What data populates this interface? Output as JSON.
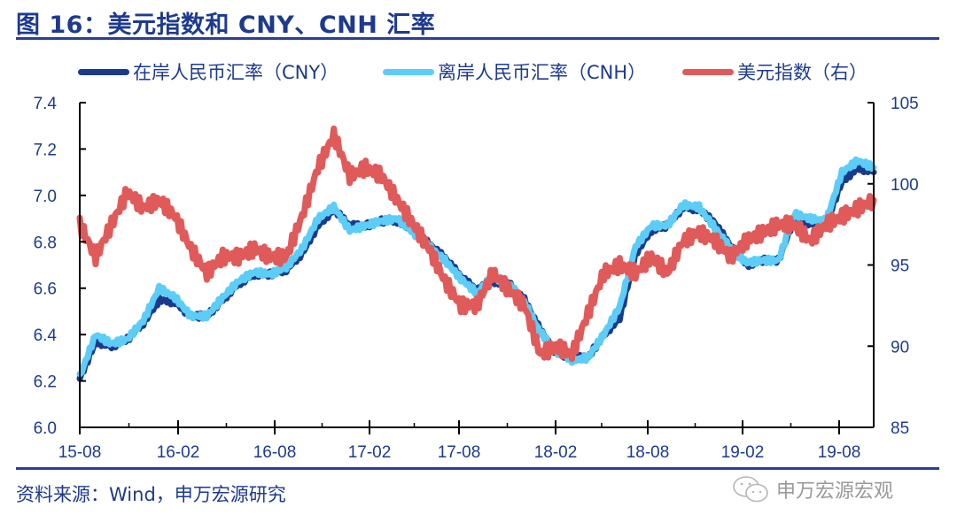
{
  "header": {
    "title": "图 16：美元指数和 CNY、CNH 汇率"
  },
  "legend": [
    {
      "label": "在岸人民币汇率（CNY）",
      "color": "#1a3a8c"
    },
    {
      "label": "离岸人民币汇率（CNH）",
      "color": "#5bcdf7"
    },
    {
      "label": "美元指数（右）",
      "color": "#e05a5a"
    }
  ],
  "footer": {
    "source": "资料来源：Wind，申万宏源研究",
    "watermark": "申万宏源宏观"
  },
  "colors": {
    "title": "#1d3a8f",
    "rule": "#2c3e96",
    "cny": "#1a3a8c",
    "cnh": "#5bcdf7",
    "dxy": "#e05a5a"
  },
  "chart_data": {
    "type": "line",
    "title": "图 16：美元指数和 CNY、CNH 汇率",
    "xlabel": "",
    "ylabel_left": "",
    "ylabel_right": "",
    "x_tick_labels": [
      "15-08",
      "16-02",
      "16-08",
      "17-02",
      "17-08",
      "18-02",
      "18-08",
      "19-02",
      "19-08"
    ],
    "y_left": {
      "range": [
        6.0,
        7.4
      ],
      "ticks": [
        "6.0",
        "6.2",
        "6.4",
        "6.6",
        "6.8",
        "7.0",
        "7.2",
        "7.4"
      ]
    },
    "y_right": {
      "range": [
        85,
        105
      ],
      "ticks": [
        "85",
        "90",
        "95",
        "100",
        "105"
      ]
    },
    "grid": false,
    "legend_position": "top",
    "x": [
      "2015-08",
      "2015-09",
      "2015-10",
      "2015-11",
      "2015-12",
      "2016-01",
      "2016-02",
      "2016-03",
      "2016-04",
      "2016-05",
      "2016-06",
      "2016-07",
      "2016-08",
      "2016-09",
      "2016-10",
      "2016-11",
      "2016-12",
      "2017-01",
      "2017-02",
      "2017-03",
      "2017-04",
      "2017-05",
      "2017-06",
      "2017-07",
      "2017-08",
      "2017-09",
      "2017-10",
      "2017-11",
      "2017-12",
      "2018-01",
      "2018-02",
      "2018-03",
      "2018-04",
      "2018-05",
      "2018-06",
      "2018-07",
      "2018-08",
      "2018-09",
      "2018-10",
      "2018-11",
      "2018-12",
      "2019-01",
      "2019-02",
      "2019-03",
      "2019-04",
      "2019-05",
      "2019-06",
      "2019-07",
      "2019-08",
      "2019-09",
      "2019-10"
    ],
    "series": [
      {
        "name": "在岸人民币汇率（CNY）",
        "axis": "left",
        "values": [
          6.21,
          6.37,
          6.35,
          6.38,
          6.45,
          6.55,
          6.54,
          6.48,
          6.48,
          6.55,
          6.62,
          6.66,
          6.66,
          6.68,
          6.75,
          6.87,
          6.94,
          6.87,
          6.87,
          6.89,
          6.89,
          6.85,
          6.79,
          6.73,
          6.65,
          6.59,
          6.63,
          6.62,
          6.55,
          6.42,
          6.32,
          6.3,
          6.3,
          6.4,
          6.47,
          6.75,
          6.85,
          6.87,
          6.95,
          6.94,
          6.88,
          6.78,
          6.7,
          6.72,
          6.72,
          6.9,
          6.88,
          6.88,
          7.06,
          7.12,
          7.1
        ]
      },
      {
        "name": "离岸人民币汇率（CNH）",
        "axis": "left",
        "values": [
          6.22,
          6.4,
          6.36,
          6.38,
          6.46,
          6.6,
          6.56,
          6.48,
          6.48,
          6.56,
          6.63,
          6.67,
          6.66,
          6.69,
          6.77,
          6.9,
          6.95,
          6.85,
          6.87,
          6.89,
          6.9,
          6.84,
          6.78,
          6.72,
          6.64,
          6.58,
          6.65,
          6.62,
          6.54,
          6.41,
          6.33,
          6.29,
          6.3,
          6.4,
          6.52,
          6.78,
          6.87,
          6.87,
          6.96,
          6.95,
          6.86,
          6.77,
          6.71,
          6.72,
          6.72,
          6.92,
          6.9,
          6.89,
          7.1,
          7.15,
          7.12
        ]
      },
      {
        "name": "美元指数（右）",
        "axis": "right",
        "values": [
          97.5,
          95.5,
          97.5,
          99.5,
          98.5,
          99.0,
          98.0,
          96.0,
          94.5,
          95.5,
          95.5,
          96.0,
          95.5,
          95.5,
          98.0,
          101.0,
          103.0,
          100.5,
          101.0,
          100.5,
          99.0,
          97.5,
          96.0,
          94.0,
          92.5,
          92.5,
          94.5,
          93.5,
          92.5,
          89.5,
          90.0,
          89.5,
          92.0,
          94.5,
          95.0,
          94.5,
          95.5,
          94.5,
          96.5,
          97.0,
          96.5,
          95.5,
          96.5,
          97.0,
          97.5,
          97.5,
          96.5,
          97.5,
          98.0,
          98.5,
          99.0
        ]
      }
    ]
  }
}
